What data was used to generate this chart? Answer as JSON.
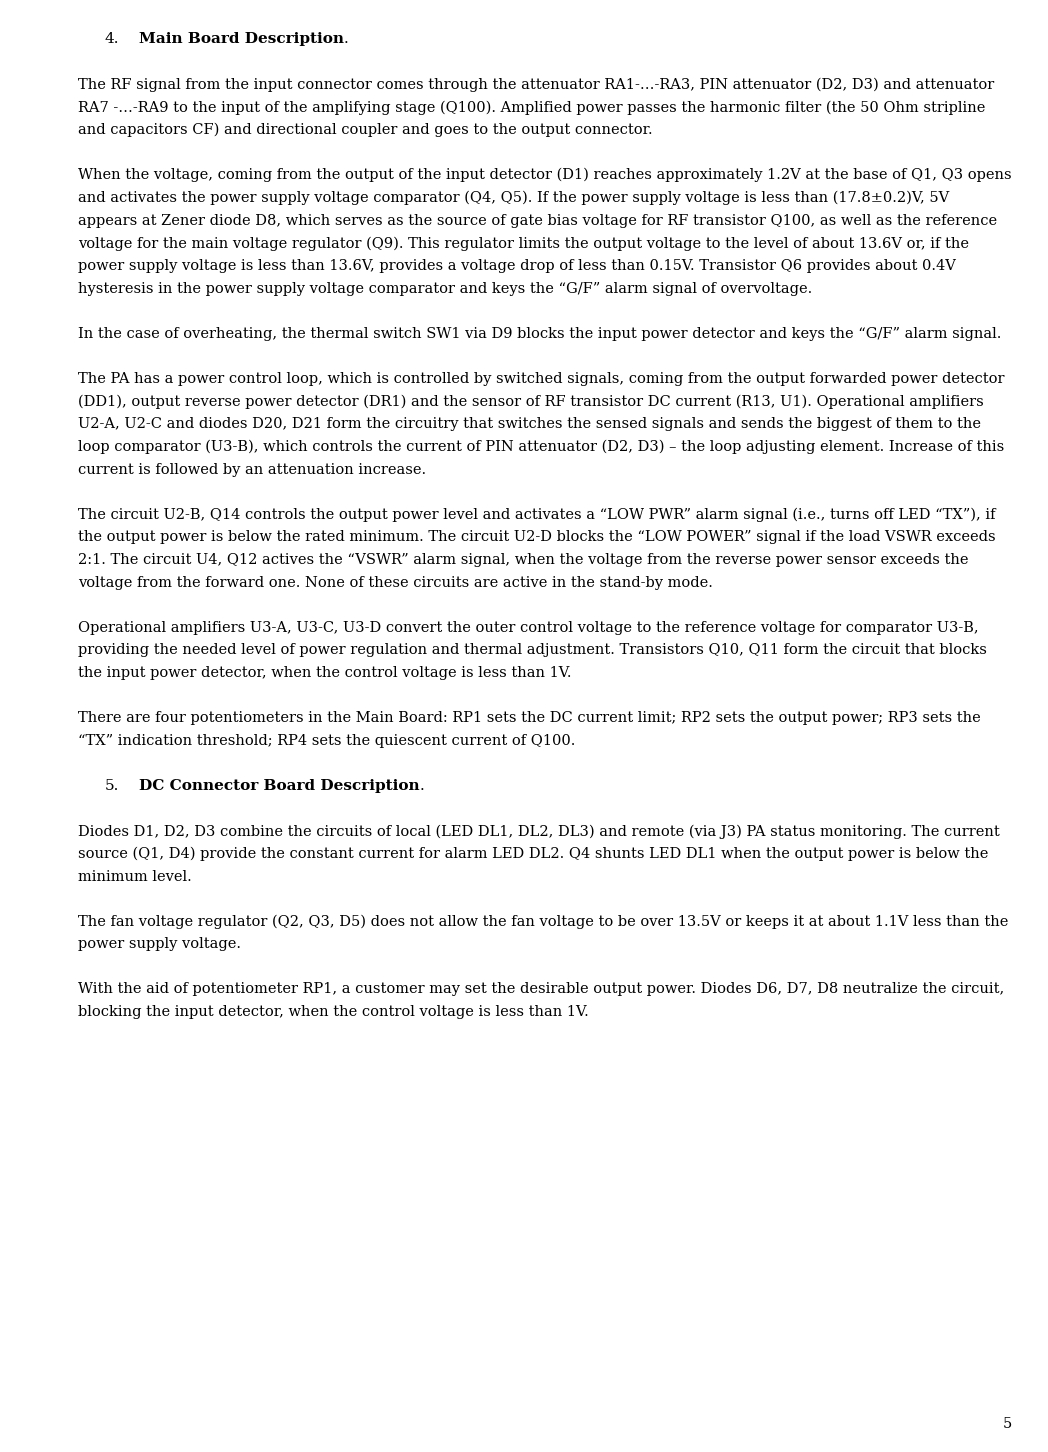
{
  "background_color": "#ffffff",
  "text_color": "#000000",
  "page_number": "5",
  "font_size_body": 10.5,
  "font_size_heading": 11.0,
  "sections": [
    {
      "type": "heading",
      "num": "4.",
      "bold_text": "Main Board Description",
      "suffix": "."
    },
    {
      "type": "paragraph",
      "text": "The RF signal from the input connector comes through the attenuator RA1-…-RA3, PIN attenuator (D2, D3) and attenuator RA7 -…-RA9 to the input of the amplifying stage (Q100). Amplified power passes the harmonic filter (the 50 Ohm stripline and capacitors CF) and directional coupler and goes to the output connector."
    },
    {
      "type": "paragraph",
      "text": "When the voltage, coming from the output of the input detector (D1) reaches approximately 1.2V at the base of Q1, Q3 opens and activates the power supply voltage comparator (Q4, Q5). If the power supply voltage is less than (17.8±0.2)V, 5V appears at Zener diode D8, which serves as the source of gate bias voltage for RF transistor Q100, as well as the reference voltage for the main voltage regulator (Q9). This regulator limits the output voltage to the level of about 13.6V or, if the power supply voltage is less than 13.6V, provides a voltage drop of less than 0.15V. Transistor Q6 provides about 0.4V hysteresis in the power supply voltage comparator and keys the “G/F” alarm signal of overvoltage."
    },
    {
      "type": "paragraph",
      "text": "In the case of overheating, the thermal switch SW1 via D9 blocks the input power detector and keys the “G/F” alarm signal."
    },
    {
      "type": "paragraph",
      "text": "The PA has a power control loop, which is controlled by switched signals, coming from the output forwarded power detector (DD1), output reverse power detector (DR1) and the sensor of RF transistor DC current (R13, U1).  Operational amplifiers U2-A, U2-C and diodes D20, D21 form the circuitry that switches the sensed signals and sends the biggest of them to the loop comparator (U3-B), which controls the current of  PIN attenuator (D2, D3) –  the loop adjusting element. Increase of this current is followed by an attenuation increase."
    },
    {
      "type": "paragraph",
      "text": "The circuit U2-B, Q14 controls the output power level and activates a “LOW PWR” alarm signal (i.e., turns off LED “TX”), if the output power is below the rated minimum. The circuit U2-D blocks the “LOW POWER” signal if the load VSWR exceeds 2:1. The circuit U4, Q12 actives the “VSWR” alarm signal, when the voltage from the reverse power sensor exceeds the voltage from the forward one. None of these circuits are active in the stand-by mode."
    },
    {
      "type": "paragraph",
      "text": "Operational amplifiers U3-A, U3-C, U3-D convert the outer control voltage to the reference voltage for comparator U3-B, providing the needed level of power regulation and thermal adjustment. Transistors Q10, Q11 form the circuit that blocks the input power detector, when the control voltage is less than 1V."
    },
    {
      "type": "paragraph",
      "text": "There are four potentiometers in the Main Board: RP1 sets the DC current limit; RP2 sets the output power; RP3 sets the “TX” indication threshold; RP4 sets the quiescent current of Q100."
    },
    {
      "type": "heading",
      "num": "5.",
      "bold_text": "DC Connector Board Description",
      "suffix": "."
    },
    {
      "type": "paragraph",
      "text": "Diodes D1, D2, D3 combine the circuits of local (LED DL1, DL2, DL3) and remote (via J3) PA status monitoring. The current source (Q1, D4) provide the constant current for alarm LED DL2.  Q4 shunts LED DL1 when the output power is below the minimum level."
    },
    {
      "type": "paragraph",
      "text": "The fan voltage regulator (Q2, Q3, D5) does not allow the fan voltage to be over 13.5V or keeps it at about 1.1V less than the power supply voltage."
    },
    {
      "type": "paragraph",
      "text": "With the aid of potentiometer RP1, a customer may set the desirable output power. Diodes D6, D7, D8 neutralize the circuit, blocking the input detector, when the control voltage is less than 1V."
    }
  ]
}
